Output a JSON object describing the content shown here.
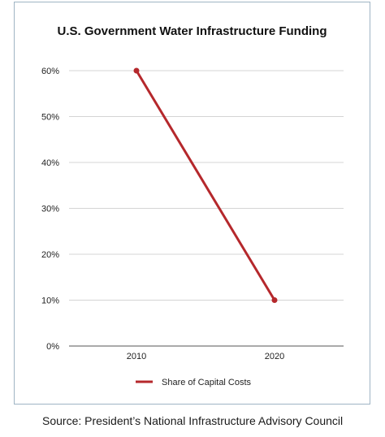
{
  "chart_data": {
    "type": "line",
    "title": "U.S. Government Water Infrastructure Funding",
    "xlabel": "",
    "ylabel": "",
    "categories": [
      "2010",
      "2020"
    ],
    "series": [
      {
        "name": "Share of Capital Costs",
        "values": [
          60,
          10
        ],
        "color": "#b5282c"
      }
    ],
    "ylim": [
      0,
      60
    ],
    "y_ticks": [
      "0%",
      "10%",
      "20%",
      "30%",
      "40%",
      "50%",
      "60%"
    ],
    "grid": true,
    "legend_placement": "bottom"
  },
  "source": "Source: President’s National Infrastructure Advisory Council"
}
